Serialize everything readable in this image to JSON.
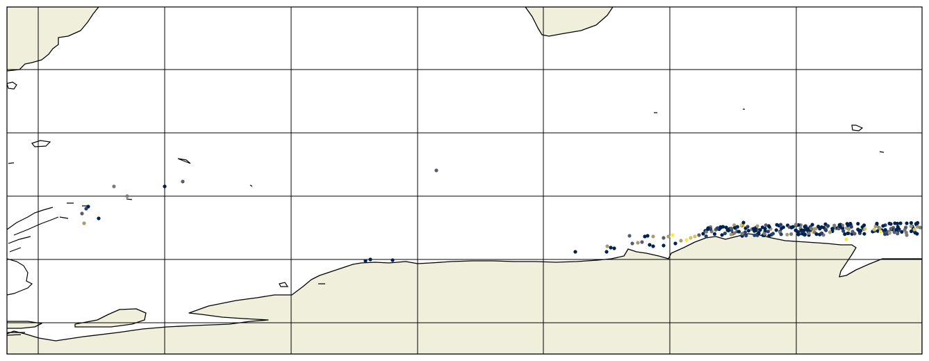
{
  "map": {
    "colors": {
      "land": "#efefdb",
      "ocean": "#ffffff",
      "points": [
        "#00224e",
        "#2a3f6d",
        "#575c6e",
        "#7c7b78",
        "#a59c74",
        "#d3c164",
        "#fee838"
      ]
    },
    "gridlines": true,
    "tick_labels": []
  }
}
